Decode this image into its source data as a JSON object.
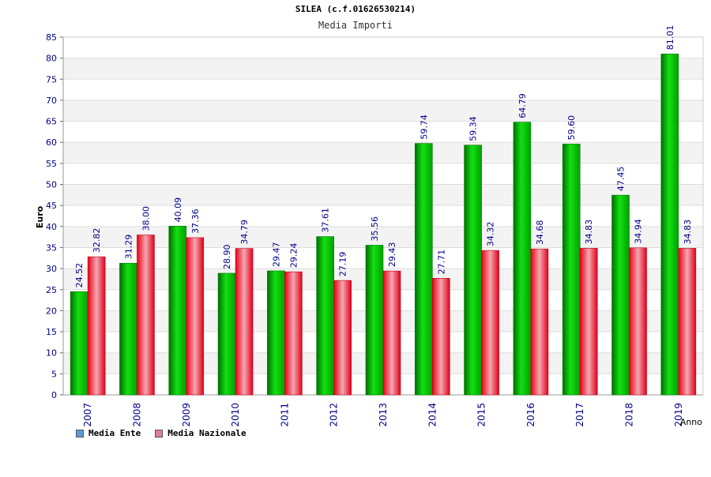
{
  "chart_data": {
    "type": "bar",
    "title": "SILEA (c.f.01626530214)",
    "subtitle": "Media Importi",
    "xlabel": "Anno",
    "ylabel": "Euro",
    "ylim": [
      0,
      85
    ],
    "yticks": [
      0,
      5,
      10,
      15,
      20,
      25,
      30,
      35,
      40,
      45,
      50,
      55,
      60,
      65,
      70,
      75,
      80,
      85
    ],
    "grid": true,
    "legend_position": "bottom-left",
    "categories": [
      "2007",
      "2008",
      "2009",
      "2010",
      "2011",
      "2012",
      "2013",
      "2014",
      "2015",
      "2016",
      "2017",
      "2018",
      "2019"
    ],
    "series": [
      {
        "name": "Media Ente",
        "color": "#00b000",
        "legend_color": "#5b9bd5",
        "values": [
          24.52,
          31.29,
          40.09,
          28.9,
          29.47,
          37.61,
          35.56,
          59.74,
          59.34,
          64.79,
          59.6,
          47.45,
          81.01
        ],
        "labels": [
          "24.52",
          "31.29",
          "40.09",
          "28.90",
          "29.47",
          "37.61",
          "35.56",
          "59.74",
          "59.34",
          "64.79",
          "59.60",
          "47.45",
          "81.01"
        ]
      },
      {
        "name": "Media Nazionale",
        "color": "#e8001c",
        "legend_color": "#e07ba0",
        "values": [
          32.82,
          38.0,
          37.36,
          34.79,
          29.24,
          27.19,
          29.43,
          27.71,
          34.32,
          34.68,
          34.83,
          34.94,
          34.83
        ],
        "labels": [
          "32.82",
          "38.00",
          "37.36",
          "34.79",
          "29.24",
          "27.19",
          "29.43",
          "27.71",
          "34.32",
          "34.68",
          "34.83",
          "34.94",
          "34.83"
        ]
      }
    ]
  }
}
